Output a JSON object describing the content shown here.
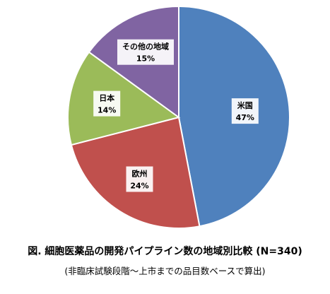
{
  "chart_data": {
    "type": "pie",
    "categories": [
      "米国",
      "欧州",
      "日本",
      "その他の地域"
    ],
    "values": [
      47,
      24,
      14,
      15
    ],
    "value_labels": [
      "47%",
      "24%",
      "14%",
      "15%"
    ],
    "colors": [
      "#4f81bd",
      "#c0504d",
      "#9bbb59",
      "#8064a2"
    ],
    "legend": "none",
    "start": "12 o'clock",
    "direction": "clockwise"
  },
  "caption": {
    "title": "図. 細胞医薬品の開発パイプライン数の地域別比較 (N=340)",
    "subtitle": "(非臨床試験段階～上市までの品目数ベースで算出)"
  }
}
